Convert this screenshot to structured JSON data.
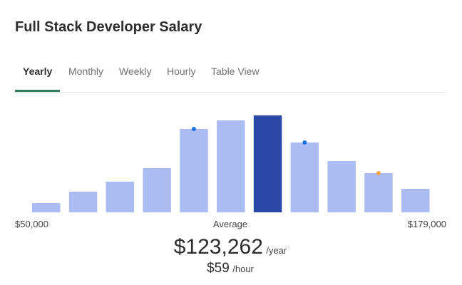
{
  "header": {
    "title": "Full Stack Developer Salary"
  },
  "tabs": [
    "Yearly",
    "Monthly",
    "Weekly",
    "Hourly",
    "Table View"
  ],
  "active_tab": 0,
  "chart_data": {
    "type": "bar",
    "values": [
      13,
      29,
      43,
      62,
      117,
      129,
      136,
      98,
      72,
      55,
      33
    ],
    "color": "#aabcf2",
    "highlight": 6,
    "highlight_color": "#2a48a5",
    "axis_labels": {
      "min": "$50,000",
      "center": "Average",
      "max": "$179,000"
    }
  },
  "summary": {
    "yearly": {
      "amount": "$123,262",
      "unit": "/year"
    },
    "hourly": {
      "amount": "$59",
      "unit": "/hour"
    }
  }
}
